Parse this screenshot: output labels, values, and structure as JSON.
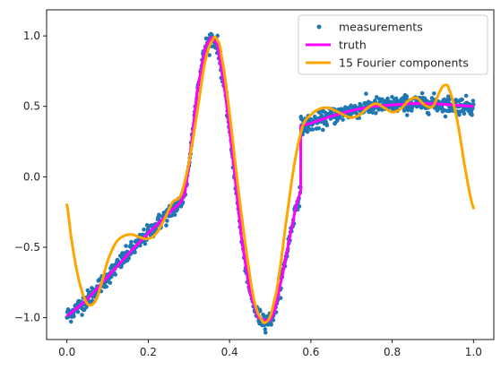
{
  "chart_data": {
    "type": "scatter",
    "title": "",
    "xlabel": "",
    "ylabel": "",
    "xlim": [
      -0.05,
      1.05
    ],
    "ylim": [
      -1.155,
      1.185
    ],
    "xticks": [
      0.0,
      0.2,
      0.4,
      0.6,
      0.8,
      1.0
    ],
    "xtick_labels": [
      "0.0",
      "0.2",
      "0.4",
      "0.6",
      "0.8",
      "1.0"
    ],
    "yticks": [
      -1.0,
      -0.5,
      0.0,
      0.5,
      1.0
    ],
    "ytick_labels": [
      "−1.0",
      "−0.5",
      "0.0",
      "0.5",
      "1.0"
    ],
    "grid": false,
    "legend": {
      "placement": "top-right",
      "entries": [
        "measurements",
        "truth",
        "15 Fourier components"
      ]
    },
    "series": [
      {
        "name": "measurements",
        "kind": "scatter",
        "color": "#1f77b4",
        "n_points": 1000,
        "noise_sd": 0.03,
        "follows": "truth"
      },
      {
        "name": "truth",
        "kind": "line",
        "color": "#ff00ff",
        "x": [
          0.0,
          0.05,
          0.1,
          0.15,
          0.2,
          0.25,
          0.28,
          0.29,
          0.3,
          0.32,
          0.34,
          0.355,
          0.37,
          0.39,
          0.41,
          0.43,
          0.45,
          0.47,
          0.49,
          0.5,
          0.51,
          0.53,
          0.55,
          0.565,
          0.575,
          0.5751,
          0.6,
          0.65,
          0.7,
          0.75,
          0.8,
          0.85,
          0.9,
          0.95,
          1.0
        ],
        "y": [
          -0.99,
          -0.87,
          -0.71,
          -0.55,
          -0.4,
          -0.26,
          -0.18,
          -0.12,
          0.08,
          0.6,
          0.92,
          0.99,
          0.94,
          0.58,
          0.08,
          -0.45,
          -0.82,
          -1.0,
          -1.02,
          -1.02,
          -0.96,
          -0.7,
          -0.4,
          -0.19,
          -0.1,
          0.36,
          0.38,
          0.43,
          0.47,
          0.5,
          0.51,
          0.52,
          0.52,
          0.51,
          0.5
        ]
      },
      {
        "name": "15 Fourier components",
        "kind": "line",
        "color": "#ffa500",
        "x": [
          0.0,
          0.01,
          0.02,
          0.03,
          0.04,
          0.05,
          0.06,
          0.07,
          0.08,
          0.1,
          0.12,
          0.14,
          0.16,
          0.18,
          0.2,
          0.22,
          0.24,
          0.26,
          0.28,
          0.3,
          0.32,
          0.34,
          0.36,
          0.37,
          0.38,
          0.4,
          0.42,
          0.44,
          0.46,
          0.48,
          0.49,
          0.5,
          0.51,
          0.52,
          0.54,
          0.56,
          0.58,
          0.6,
          0.62,
          0.64,
          0.66,
          0.68,
          0.7,
          0.72,
          0.74,
          0.76,
          0.78,
          0.8,
          0.82,
          0.84,
          0.86,
          0.88,
          0.9,
          0.92,
          0.93,
          0.94,
          0.96,
          0.98,
          1.0
        ],
        "y": [
          -0.2,
          -0.42,
          -0.6,
          -0.74,
          -0.84,
          -0.9,
          -0.91,
          -0.88,
          -0.8,
          -0.6,
          -0.47,
          -0.42,
          -0.41,
          -0.43,
          -0.44,
          -0.4,
          -0.3,
          -0.18,
          -0.13,
          0.1,
          0.45,
          0.82,
          0.98,
          0.97,
          0.86,
          0.45,
          -0.05,
          -0.5,
          -0.87,
          -1.02,
          -1.03,
          -0.99,
          -0.88,
          -0.72,
          -0.3,
          0.1,
          0.36,
          0.44,
          0.48,
          0.49,
          0.47,
          0.44,
          0.42,
          0.44,
          0.49,
          0.52,
          0.49,
          0.46,
          0.48,
          0.54,
          0.56,
          0.51,
          0.5,
          0.62,
          0.65,
          0.62,
          0.4,
          0.05,
          -0.22
        ]
      }
    ]
  }
}
